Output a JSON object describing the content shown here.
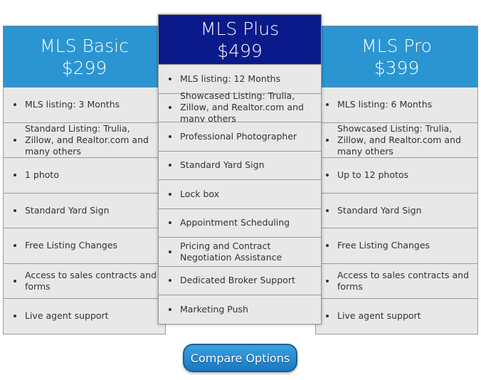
{
  "plans": [
    {
      "name": "MLS Basic",
      "price": "$299",
      "features": [
        "MLS listing: 3 Months",
        "Standard Listing: Trulia, Zillow, and Realtor.com and many others",
        "1 photo",
        "Standard Yard Sign",
        "Free Listing Changes",
        "Access to sales contracts and forms",
        "Live agent support"
      ]
    },
    {
      "name": "MLS Plus",
      "price": "$499",
      "features": [
        "MLS listing: 12 Months",
        "Showcased Listing: Trulia, Zillow, and Realtor.com and many others",
        "Professional Photographer",
        "Standard Yard Sign",
        "Lock box",
        "Appointment Scheduling",
        "Pricing and Contract Negotiation Assistance",
        "Dedicated Broker Support",
        "Marketing Push"
      ]
    },
    {
      "name": "MLS Pro",
      "price": "$399",
      "features": [
        "MLS listing: 6 Months",
        "Showcased Listing: Trulia, Zillow, and Realtor.com and many others",
        "Up to 12 photos",
        "Standard Yard Sign",
        "Free Listing Changes",
        "Access to sales contracts and forms",
        "Live agent support"
      ]
    }
  ],
  "button": "Compare Options"
}
